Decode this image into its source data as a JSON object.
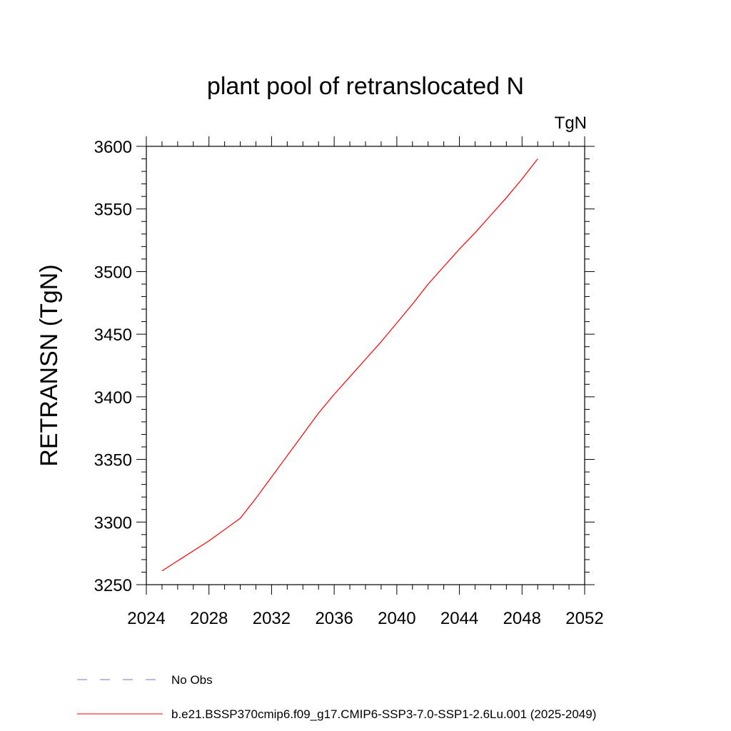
{
  "chart_data": {
    "type": "line",
    "title": "plant pool of retranslocated N",
    "units_label": "TgN",
    "ylabel": "RETRANSN  (TgN)",
    "xlabel": "",
    "xlim": [
      2024,
      2052
    ],
    "ylim": [
      3250,
      3600
    ],
    "x_ticks": [
      2024,
      2028,
      2032,
      2036,
      2040,
      2044,
      2048,
      2052
    ],
    "y_ticks": [
      3250,
      3300,
      3350,
      3400,
      3450,
      3500,
      3550,
      3600
    ],
    "grid": false,
    "series": [
      {
        "name": "b.e21.BSSP370cmip6.f09_g17.CMIP6-SSP3-7.0-SSP1-2.6Lu.001 (2025-2049)",
        "color": "#ff0000",
        "style": "solid",
        "x": [
          2025,
          2026,
          2027,
          2028,
          2029,
          2030,
          2031,
          2032,
          2033,
          2034,
          2035,
          2036,
          2037,
          2038,
          2039,
          2040,
          2041,
          2042,
          2043,
          2044,
          2045,
          2046,
          2047,
          2048,
          2049
        ],
        "y": [
          3261,
          3269,
          3277,
          3285,
          3294,
          3303,
          3319,
          3336,
          3353,
          3370,
          3387,
          3402,
          3416,
          3430,
          3444,
          3459,
          3474,
          3490,
          3504,
          3518,
          3531,
          3545,
          3559,
          3574,
          3590
        ]
      }
    ],
    "legend": {
      "position": "bottom-left",
      "entries": [
        {
          "label": "No Obs",
          "color": "#7777cc",
          "style": "dashed"
        },
        {
          "label": "b.e21.BSSP370cmip6.f09_g17.CMIP6-SSP3-7.0-SSP1-2.6Lu.001 (2025-2049)",
          "color": "#ff0000",
          "style": "solid"
        }
      ]
    }
  }
}
